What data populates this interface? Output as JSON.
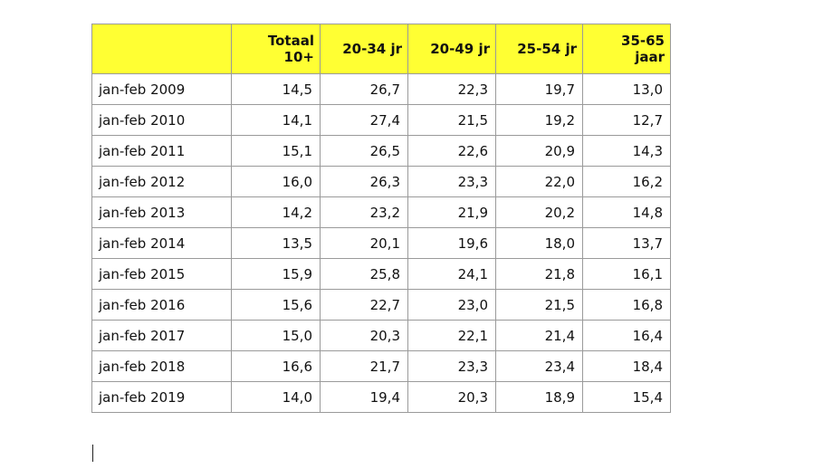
{
  "table": {
    "header": {
      "period": "",
      "columns": [
        "Totaal 10+",
        "20-34 jr",
        "20-49 jr",
        "25-54 jr",
        "35-65 jaar"
      ]
    },
    "rows": [
      {
        "period": "jan-feb 2009",
        "values": [
          "14,5",
          "26,7",
          "22,3",
          "19,7",
          "13,0"
        ]
      },
      {
        "period": "jan-feb 2010",
        "values": [
          "14,1",
          "27,4",
          "21,5",
          "19,2",
          "12,7"
        ]
      },
      {
        "period": "jan-feb 2011",
        "values": [
          "15,1",
          "26,5",
          "22,6",
          "20,9",
          "14,3"
        ]
      },
      {
        "period": "jan-feb 2012",
        "values": [
          "16,0",
          "26,3",
          "23,3",
          "22,0",
          "16,2"
        ]
      },
      {
        "period": "jan-feb 2013",
        "values": [
          "14,2",
          "23,2",
          "21,9",
          "20,2",
          "14,8"
        ]
      },
      {
        "period": "jan-feb 2014",
        "values": [
          "13,5",
          "20,1",
          "19,6",
          "18,0",
          "13,7"
        ]
      },
      {
        "period": "jan-feb 2015",
        "values": [
          "15,9",
          "25,8",
          "24,1",
          "21,8",
          "16,1"
        ]
      },
      {
        "period": "jan-feb 2016",
        "values": [
          "15,6",
          "22,7",
          "23,0",
          "21,5",
          "16,8"
        ]
      },
      {
        "period": "jan-feb 2017",
        "values": [
          "15,0",
          "20,3",
          "22,1",
          "21,4",
          "16,4"
        ]
      },
      {
        "period": "jan-feb 2018",
        "values": [
          "16,6",
          "21,7",
          "23,3",
          "23,4",
          "18,4"
        ]
      },
      {
        "period": "jan-feb 2019",
        "values": [
          "14,0",
          "19,4",
          "20,3",
          "18,9",
          "15,4"
        ]
      }
    ],
    "header_color": "#ffff33"
  }
}
